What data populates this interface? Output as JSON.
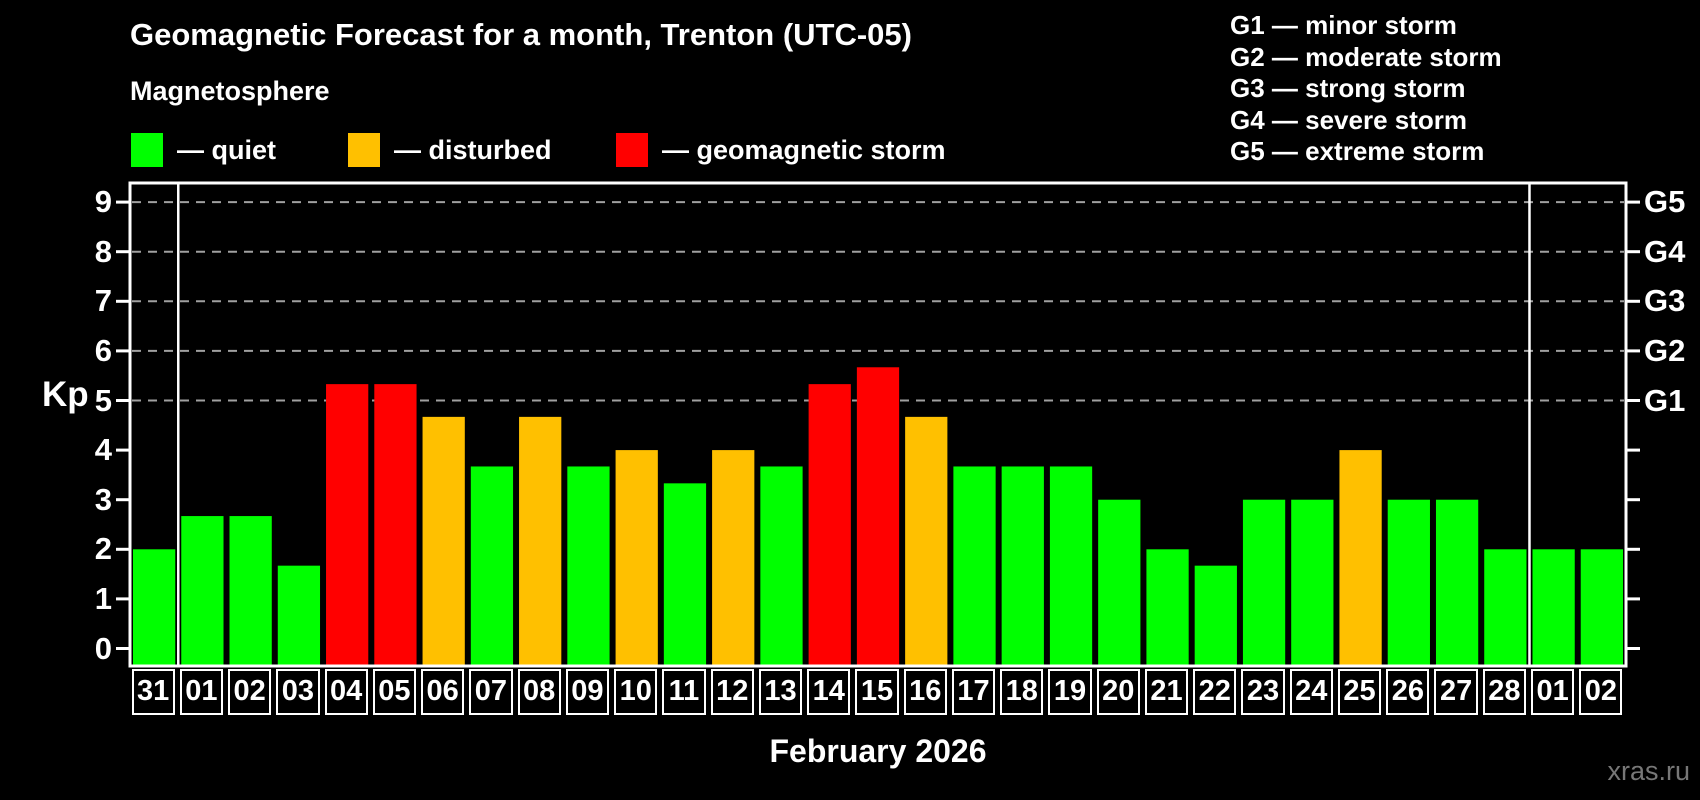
{
  "title": "Geomagnetic Forecast for a month, Trenton (UTC-05)",
  "subtitle": "Magnetosphere",
  "magnetosphere_legend": {
    "items": [
      {
        "label": "— quiet",
        "status": "quiet"
      },
      {
        "label": "— disturbed",
        "status": "disturbed"
      },
      {
        "label": "— geomagnetic storm",
        "status": "storm"
      }
    ]
  },
  "g_scale_legend": {
    "items": [
      "G1 — minor storm",
      "G2 — moderate storm",
      "G3 — strong storm",
      "G4 — severe storm",
      "G5 — extreme storm"
    ]
  },
  "colors": {
    "quiet": "#00FF00",
    "disturbed": "#FFC000",
    "storm": "#FF0000",
    "grid": "#A0A0A0",
    "axis": "#FFFFFF",
    "background": "#000000",
    "watermark": "#777777"
  },
  "axis": {
    "y_label": "Kp",
    "y_ticks": [
      0,
      1,
      2,
      3,
      4,
      5,
      6,
      7,
      8,
      9
    ],
    "right_labels": [
      {
        "kp": 5,
        "label": "G1"
      },
      {
        "kp": 6,
        "label": "G2"
      },
      {
        "kp": 7,
        "label": "G3"
      },
      {
        "kp": 8,
        "label": "G4"
      },
      {
        "kp": 9,
        "label": "G5"
      }
    ]
  },
  "month_label": "February 2026",
  "watermark": "xras.ru",
  "chart_data": {
    "type": "bar",
    "title": "Geomagnetic Forecast for a month, Trenton (UTC-05)",
    "ylabel": "Kp",
    "ylim": [
      0,
      9
    ],
    "grid": "dashed horizontal at Kp 5-9 only",
    "legend_position": "top-left and top-right",
    "categories": [
      "31",
      "01",
      "02",
      "03",
      "04",
      "05",
      "06",
      "07",
      "08",
      "09",
      "10",
      "11",
      "12",
      "13",
      "14",
      "15",
      "16",
      "17",
      "18",
      "19",
      "20",
      "21",
      "22",
      "23",
      "24",
      "25",
      "26",
      "27",
      "28",
      "01",
      "02"
    ],
    "values": [
      2.0,
      2.67,
      2.67,
      1.67,
      5.33,
      5.33,
      4.67,
      3.67,
      4.67,
      3.67,
      4.0,
      3.33,
      4.0,
      3.67,
      5.33,
      5.67,
      4.67,
      3.67,
      3.67,
      3.67,
      3.0,
      2.0,
      1.67,
      3.0,
      3.0,
      4.0,
      3.0,
      3.0,
      2.0,
      2.0,
      2.0
    ],
    "statuses": [
      "quiet",
      "quiet",
      "quiet",
      "quiet",
      "storm",
      "storm",
      "disturbed",
      "quiet",
      "disturbed",
      "quiet",
      "disturbed",
      "quiet",
      "disturbed",
      "quiet",
      "storm",
      "storm",
      "disturbed",
      "quiet",
      "quiet",
      "quiet",
      "quiet",
      "quiet",
      "quiet",
      "quiet",
      "quiet",
      "disturbed",
      "quiet",
      "quiet",
      "quiet",
      "quiet",
      "quiet"
    ],
    "gridlines_kp": [
      5,
      6,
      7,
      8,
      9
    ],
    "month_separators_before_index": [
      1,
      29
    ]
  }
}
